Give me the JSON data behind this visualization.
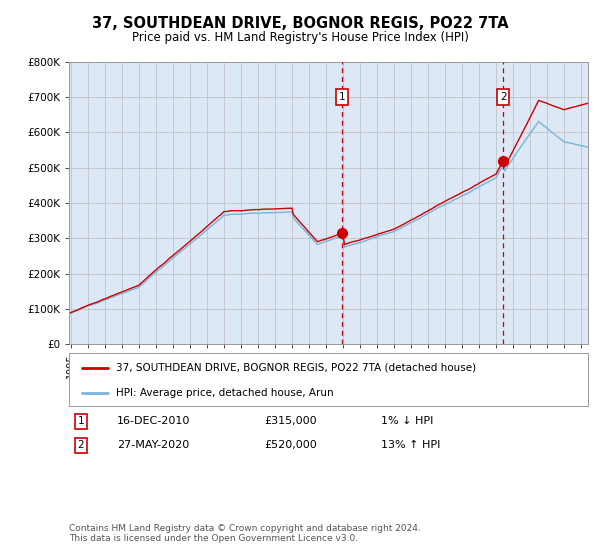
{
  "title": "37, SOUTHDEAN DRIVE, BOGNOR REGIS, PO22 7TA",
  "subtitle": "Price paid vs. HM Land Registry's House Price Index (HPI)",
  "hpi_color": "#7ab3d9",
  "price_color": "#cc0000",
  "marker_color": "#cc0000",
  "bg_plot": "#dce8f5",
  "bg_fig": "#ffffff",
  "grid_color": "#bbbbbb",
  "ylim": [
    0,
    800000
  ],
  "yticks": [
    0,
    100000,
    200000,
    300000,
    400000,
    500000,
    600000,
    700000,
    800000
  ],
  "ytick_labels": [
    "£0",
    "£100K",
    "£200K",
    "£300K",
    "£400K",
    "£500K",
    "£600K",
    "£700K",
    "£800K"
  ],
  "x_start_year": 1995,
  "x_end_year": 2025,
  "sale1_date": 2010.96,
  "sale1_price": 315000,
  "sale1_label": "1",
  "sale2_date": 2020.41,
  "sale2_price": 520000,
  "sale2_label": "2",
  "legend_line1": "37, SOUTHDEAN DRIVE, BOGNOR REGIS, PO22 7TA (detached house)",
  "legend_line2": "HPI: Average price, detached house, Arun",
  "note1_label": "1",
  "note1_date": "16-DEC-2010",
  "note1_price": "£315,000",
  "note1_pct": "1% ↓ HPI",
  "note2_label": "2",
  "note2_date": "27-MAY-2020",
  "note2_price": "£520,000",
  "note2_pct": "13% ↑ HPI",
  "footer": "Contains HM Land Registry data © Crown copyright and database right 2024.\nThis data is licensed under the Open Government Licence v3.0."
}
